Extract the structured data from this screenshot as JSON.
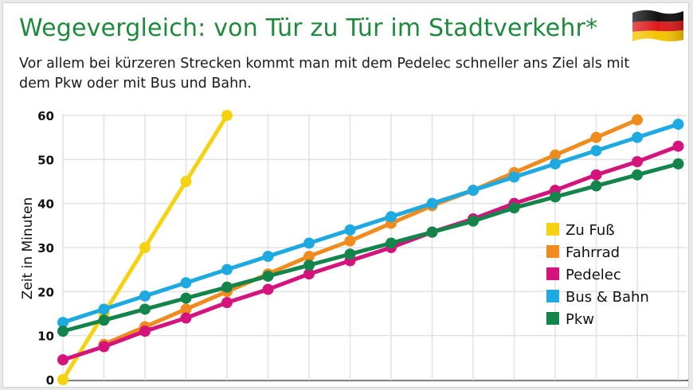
{
  "title": "Wegevergleich: von Tür zu Tür im Stadtverkehr*",
  "subtitle": "Vor allem bei kürzeren Strecken kommt man mit dem Pedelec schneller ans Ziel als mit dem Pkw oder mit Bus und Bahn.",
  "flag": {
    "colors": [
      "#111111",
      "#dd1c1c",
      "#f5c400"
    ]
  },
  "chart_data": {
    "type": "line",
    "ylabel": "Zeit in Minuten",
    "xlabel": "",
    "ylim": [
      0,
      60
    ],
    "yticks": [
      0,
      10,
      20,
      30,
      40,
      50,
      60
    ],
    "grid": true,
    "legend_position": "right",
    "x": [
      0,
      1,
      2,
      3,
      4,
      5,
      6,
      7,
      8,
      9,
      10,
      11,
      12,
      13,
      14,
      15
    ],
    "series": [
      {
        "name": "Zu Fuß",
        "color": "#f5d312",
        "x": [
          0,
          1,
          2,
          3,
          4
        ],
        "values": [
          0,
          15,
          30,
          45,
          60
        ]
      },
      {
        "name": "Fahrrad",
        "color": "#f08c1e",
        "x": [
          1,
          2,
          3,
          4,
          5,
          6,
          7,
          8,
          9,
          10,
          11,
          12,
          13,
          14
        ],
        "values": [
          8,
          12,
          16,
          20,
          24,
          28,
          31.5,
          35.5,
          39.5,
          43,
          47,
          51,
          55,
          59
        ]
      },
      {
        "name": "Pedelec",
        "color": "#d4137c",
        "x": [
          0,
          1,
          2,
          3,
          4,
          5,
          6,
          7,
          8,
          9,
          10,
          11,
          12,
          13,
          14,
          15
        ],
        "values": [
          4.5,
          7.5,
          11,
          14,
          17.5,
          20.5,
          24,
          27,
          30,
          33.5,
          36.5,
          40,
          43,
          46.5,
          49.5,
          53
        ]
      },
      {
        "name": "Bus & Bahn",
        "color": "#1ea9e1",
        "x": [
          0,
          1,
          2,
          3,
          4,
          5,
          6,
          7,
          8,
          9,
          10,
          11,
          12,
          13,
          14,
          15
        ],
        "values": [
          13,
          16,
          19,
          22,
          25,
          28,
          31,
          34,
          37,
          40,
          43,
          46,
          49,
          52,
          55,
          58
        ]
      },
      {
        "name": "Pkw",
        "color": "#14854a",
        "x": [
          0,
          1,
          2,
          3,
          4,
          5,
          6,
          7,
          8,
          9,
          10,
          11,
          12,
          13,
          14,
          15
        ],
        "values": [
          11,
          13.5,
          16,
          18.5,
          21,
          23.5,
          26,
          28.5,
          31,
          33.5,
          36,
          39,
          41.5,
          44,
          46.5,
          49
        ]
      }
    ]
  }
}
